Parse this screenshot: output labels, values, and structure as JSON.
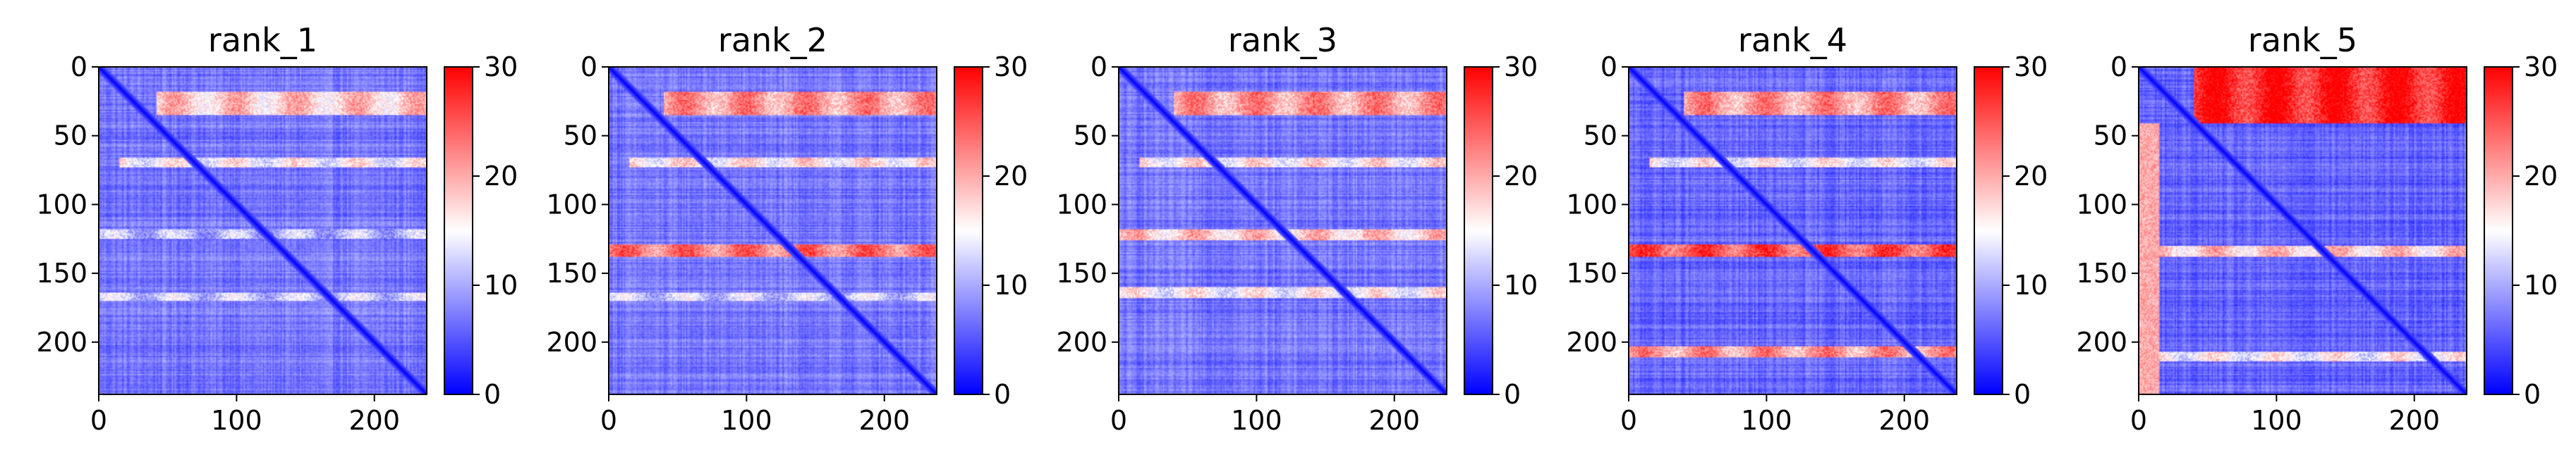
{
  "chart_data": [
    {
      "type": "heatmap",
      "title": "rank_1",
      "x_ticks": [
        "0",
        "100",
        "200"
      ],
      "y_ticks": [
        "0",
        "50",
        "100",
        "150",
        "200"
      ],
      "x_range": [
        0,
        238
      ],
      "y_range": [
        0,
        238
      ],
      "colorbar": {
        "colormap": "bwr",
        "range": [
          0,
          30
        ],
        "ticks": [
          "0",
          "10",
          "20",
          "30"
        ]
      },
      "description_values": {
        "matrix_size": 238,
        "diagonal_value": 0,
        "background_value": 7,
        "bands": [
          {
            "rows": [
              18,
              34
            ],
            "value": 18,
            "x_start": 42
          },
          {
            "rows": [
              66,
              72
            ],
            "value": 15,
            "x_start": 15
          },
          {
            "rows": [
              118,
              124
            ],
            "value": 11,
            "x_start": 0
          },
          {
            "rows": [
              164,
              169
            ],
            "value": 12,
            "x_start": 0
          }
        ]
      }
    },
    {
      "type": "heatmap",
      "title": "rank_2",
      "x_ticks": [
        "0",
        "100",
        "200"
      ],
      "y_ticks": [
        "0",
        "50",
        "100",
        "150",
        "200"
      ],
      "x_range": [
        0,
        238
      ],
      "y_range": [
        0,
        238
      ],
      "colorbar": {
        "colormap": "bwr",
        "range": [
          0,
          30
        ],
        "ticks": [
          "0",
          "10",
          "20",
          "30"
        ]
      },
      "description_values": {
        "matrix_size": 238,
        "diagonal_value": 0,
        "background_value": 7,
        "bands": [
          {
            "rows": [
              18,
              34
            ],
            "value": 21,
            "x_start": 40
          },
          {
            "rows": [
              66,
              72
            ],
            "value": 16,
            "x_start": 15
          },
          {
            "rows": [
              129,
              137
            ],
            "value": 23,
            "x_start": 0
          },
          {
            "rows": [
              164,
              169
            ],
            "value": 12,
            "x_start": 0
          }
        ]
      }
    },
    {
      "type": "heatmap",
      "title": "rank_3",
      "x_ticks": [
        "0",
        "100",
        "200"
      ],
      "y_ticks": [
        "0",
        "50",
        "100",
        "150",
        "200"
      ],
      "x_range": [
        0,
        238
      ],
      "y_range": [
        0,
        238
      ],
      "colorbar": {
        "colormap": "bwr",
        "range": [
          0,
          30
        ],
        "ticks": [
          "0",
          "10",
          "20",
          "30"
        ]
      },
      "description_values": {
        "matrix_size": 238,
        "diagonal_value": 0,
        "background_value": 7,
        "bands": [
          {
            "rows": [
              18,
              34
            ],
            "value": 21,
            "x_start": 40
          },
          {
            "rows": [
              66,
              72
            ],
            "value": 16,
            "x_start": 15
          },
          {
            "rows": [
              118,
              125
            ],
            "value": 18,
            "x_start": 0
          },
          {
            "rows": [
              160,
              167
            ],
            "value": 15,
            "x_start": 0
          }
        ]
      }
    },
    {
      "type": "heatmap",
      "title": "rank_4",
      "x_ticks": [
        "0",
        "100",
        "200"
      ],
      "y_ticks": [
        "0",
        "50",
        "100",
        "150",
        "200"
      ],
      "x_range": [
        0,
        238
      ],
      "y_range": [
        0,
        238
      ],
      "colorbar": {
        "colormap": "bwr",
        "range": [
          0,
          30
        ],
        "ticks": [
          "0",
          "10",
          "20",
          "30"
        ]
      },
      "description_values": {
        "matrix_size": 238,
        "diagonal_value": 0,
        "background_value": 6,
        "bands": [
          {
            "rows": [
              18,
              34
            ],
            "value": 21,
            "x_start": 40
          },
          {
            "rows": [
              66,
              72
            ],
            "value": 15,
            "x_start": 15
          },
          {
            "rows": [
              129,
              137
            ],
            "value": 25,
            "x_start": 0
          },
          {
            "rows": [
              203,
              210
            ],
            "value": 21,
            "x_start": 0
          }
        ]
      }
    },
    {
      "type": "heatmap",
      "title": "rank_5",
      "x_ticks": [
        "0",
        "100",
        "200"
      ],
      "y_ticks": [
        "0",
        "50",
        "100",
        "150",
        "200"
      ],
      "x_range": [
        0,
        238
      ],
      "y_range": [
        0,
        238
      ],
      "colorbar": {
        "colormap": "bwr",
        "range": [
          0,
          30
        ],
        "ticks": [
          "0",
          "10",
          "20",
          "30"
        ]
      },
      "description_values": {
        "matrix_size": 238,
        "diagonal_value": 0,
        "background_value": 6,
        "bands": [
          {
            "rows": [
              0,
              40
            ],
            "value": 28,
            "x_start": 40
          },
          {
            "rows": [
              130,
              137
            ],
            "value": 18,
            "x_start": 0
          },
          {
            "rows": [
              207,
              213
            ],
            "value": 15,
            "x_start": 0
          }
        ],
        "left_column": {
          "cols": [
            0,
            14
          ],
          "value": 20
        }
      }
    }
  ]
}
